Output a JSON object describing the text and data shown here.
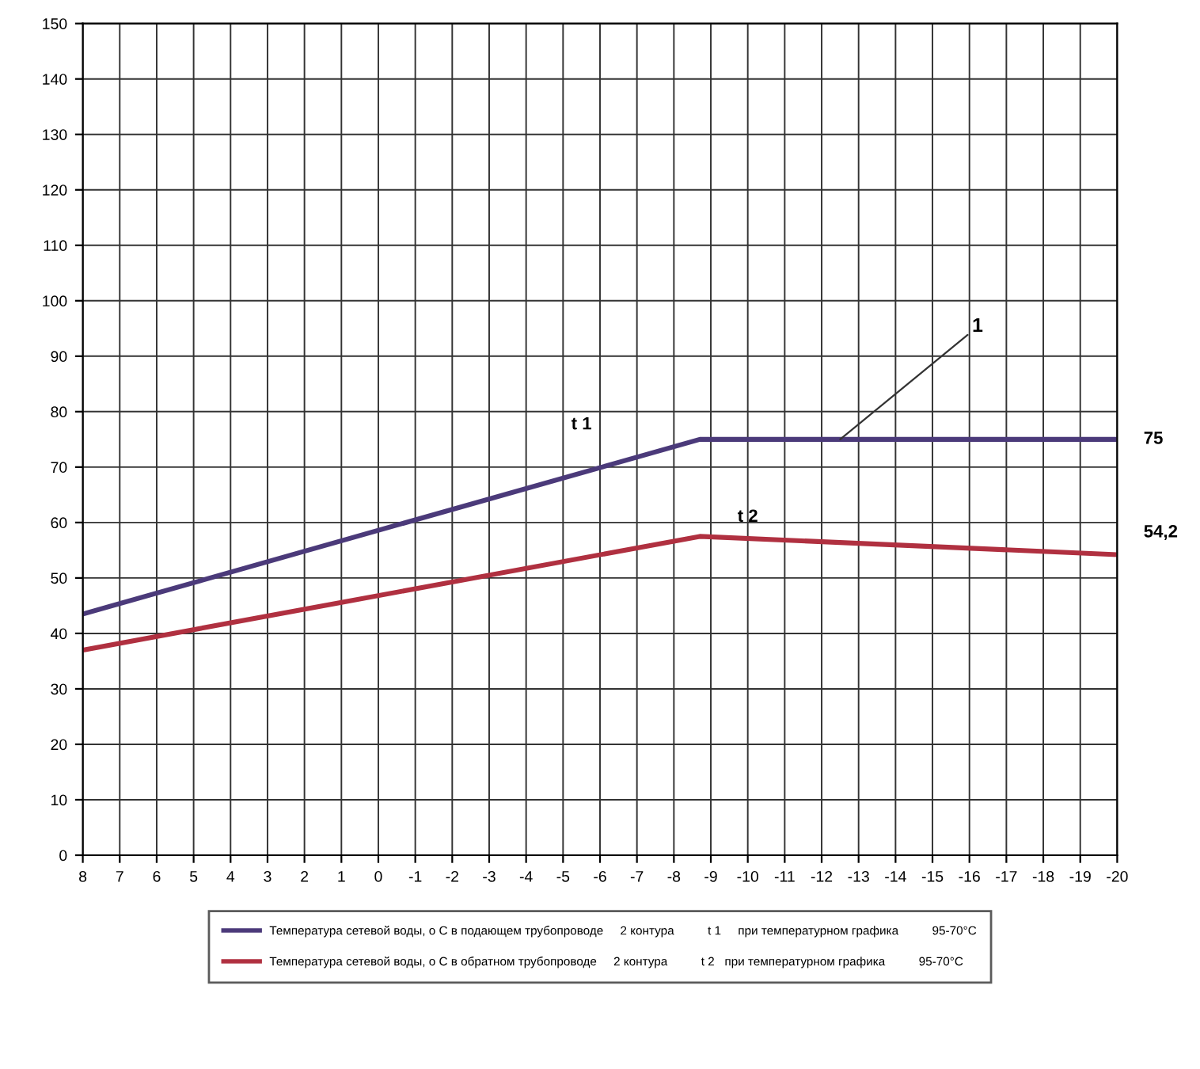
{
  "chart_data": {
    "type": "line",
    "x": [
      8,
      -8.7,
      -20
    ],
    "series": [
      {
        "name": "Температура сетевой воды, о С в подающем трубопроводе     2 контура          t 1     при температурном графика          95-70°C",
        "color": "#4b3a7a",
        "values": [
          43.5,
          75,
          75
        ]
      },
      {
        "name": "Температура сетевой воды, о С в обратном трубопроводе     2 контура          t 2   при температурном графика          95-70°C",
        "color": "#b03040",
        "values": [
          37,
          57.5,
          54.2
        ]
      }
    ],
    "xlim": [
      8,
      -20
    ],
    "xticks": [
      8,
      7,
      6,
      5,
      4,
      3,
      2,
      1,
      0,
      -1,
      -2,
      -3,
      -4,
      -5,
      -6,
      -7,
      -8,
      -9,
      -10,
      -11,
      -12,
      -13,
      -14,
      -15,
      -16,
      -17,
      -18,
      -19,
      -20
    ],
    "ylim": [
      0,
      150
    ],
    "yticks": [
      0,
      10,
      20,
      30,
      40,
      50,
      60,
      70,
      80,
      90,
      100,
      110,
      120,
      130,
      140,
      150
    ],
    "grid": true,
    "legend": "bottom",
    "marker": "none",
    "line_style": "solid",
    "annotations": [
      {
        "text": "t 1",
        "x": -5.5,
        "y": 69
      },
      {
        "text": "t 2",
        "x": -10,
        "y": 57.1
      },
      {
        "text": "1",
        "x": -12.5,
        "y": 75
      },
      {
        "text": "75",
        "x": -20,
        "y": 75
      },
      {
        "text": "54,2",
        "x": -20,
        "y": 54.2
      }
    ]
  }
}
